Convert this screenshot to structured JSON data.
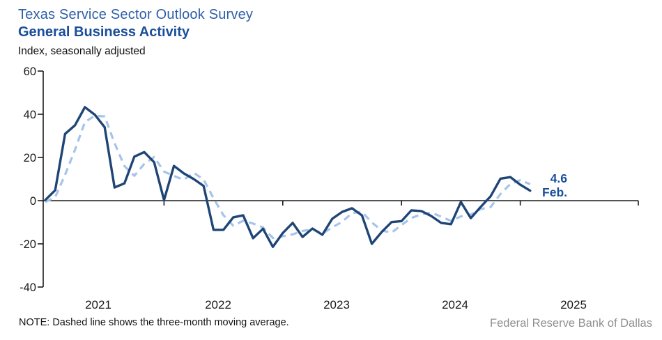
{
  "header": {
    "title": "Texas Service Sector Outlook Survey",
    "subtitle": "General Business Activity",
    "units": "Index, seasonally adjusted"
  },
  "colors": {
    "title_blue": "#2E5FA8",
    "heading_blue": "#1A4E9B",
    "line_navy": "#1F4576",
    "line_light_blue": "#A6C4E9",
    "axis_black": "#1A1A1A",
    "attribution_gray": "#8F8F8F"
  },
  "chart_data": {
    "type": "line",
    "title": "General Business Activity",
    "ylabel": "Index, seasonally adjusted",
    "ylim": [
      -40,
      60
    ],
    "yticks": [
      60,
      40,
      20,
      0,
      -20,
      -40
    ],
    "xtick_labels": [
      "2021",
      "2022",
      "2023",
      "2024",
      "2025"
    ],
    "grid": "zero-baseline only, year tick marks",
    "legend_position": "none (dashed line explained in footnote)",
    "x": [
      "Jan 2021",
      "Feb 2021",
      "Mar 2021",
      "Apr 2021",
      "May 2021",
      "Jun 2021",
      "Jul 2021",
      "Aug 2021",
      "Sep 2021",
      "Oct 2021",
      "Nov 2021",
      "Dec 2021",
      "Jan 2022",
      "Feb 2022",
      "Mar 2022",
      "Apr 2022",
      "May 2022",
      "Jun 2022",
      "Jul 2022",
      "Aug 2022",
      "Sep 2022",
      "Oct 2022",
      "Nov 2022",
      "Dec 2022",
      "Jan 2023",
      "Feb 2023",
      "Mar 2023",
      "Apr 2023",
      "May 2023",
      "Jun 2023",
      "Jul 2023",
      "Aug 2023",
      "Sep 2023",
      "Oct 2023",
      "Nov 2023",
      "Dec 2023",
      "Jan 2024",
      "Feb 2024",
      "Mar 2024",
      "Apr 2024",
      "May 2024",
      "Jun 2024",
      "Jul 2024",
      "Aug 2024",
      "Sep 2024",
      "Oct 2024",
      "Nov 2024",
      "Dec 2024",
      "Jan 2025",
      "Feb 2025"
    ],
    "series": [
      {
        "name": "General Business Activity index (monthly)",
        "style": "solid",
        "color": "#1F4576",
        "values": [
          0.3,
          4.8,
          30.9,
          34.9,
          43.3,
          39.8,
          34.0,
          6.1,
          8.0,
          20.4,
          22.5,
          17.8,
          0.3,
          16.1,
          12.6,
          10.0,
          6.8,
          -13.5,
          -13.5,
          -7.7,
          -6.8,
          -17.4,
          -13.0,
          -21.4,
          -15.0,
          -10.3,
          -16.8,
          -12.9,
          -15.8,
          -8.4,
          -5.2,
          -3.5,
          -6.8,
          -20.0,
          -14.5,
          -9.9,
          -9.5,
          -4.5,
          -4.8,
          -7.1,
          -10.3,
          -10.9,
          -0.6,
          -8.1,
          -2.9,
          2.0,
          10.2,
          10.9,
          7.4,
          4.6
        ]
      },
      {
        "name": "Three-month moving average",
        "style": "dashed",
        "color": "#A6C4E9",
        "values": [
          -0.6,
          1.6,
          12.0,
          23.5,
          36.4,
          39.3,
          39.0,
          26.6,
          16.0,
          11.5,
          17.0,
          20.2,
          13.5,
          11.4,
          9.7,
          12.9,
          9.8,
          1.1,
          -6.7,
          -11.6,
          -9.3,
          -10.6,
          -12.4,
          -17.3,
          -16.5,
          -15.6,
          -14.0,
          -13.3,
          -15.2,
          -12.4,
          -9.8,
          -5.7,
          -5.2,
          -10.1,
          -13.8,
          -14.8,
          -11.3,
          -8.0,
          -6.3,
          -5.5,
          -7.4,
          -9.4,
          -7.3,
          -6.5,
          -3.9,
          -3.0,
          3.1,
          7.7,
          9.5,
          7.6
        ]
      }
    ],
    "annotation": {
      "value": "4.6",
      "month": "Feb."
    }
  },
  "footer": {
    "note": "NOTE: Dashed line shows the three-month moving average.",
    "attribution": "Federal Reserve Bank of Dallas"
  }
}
